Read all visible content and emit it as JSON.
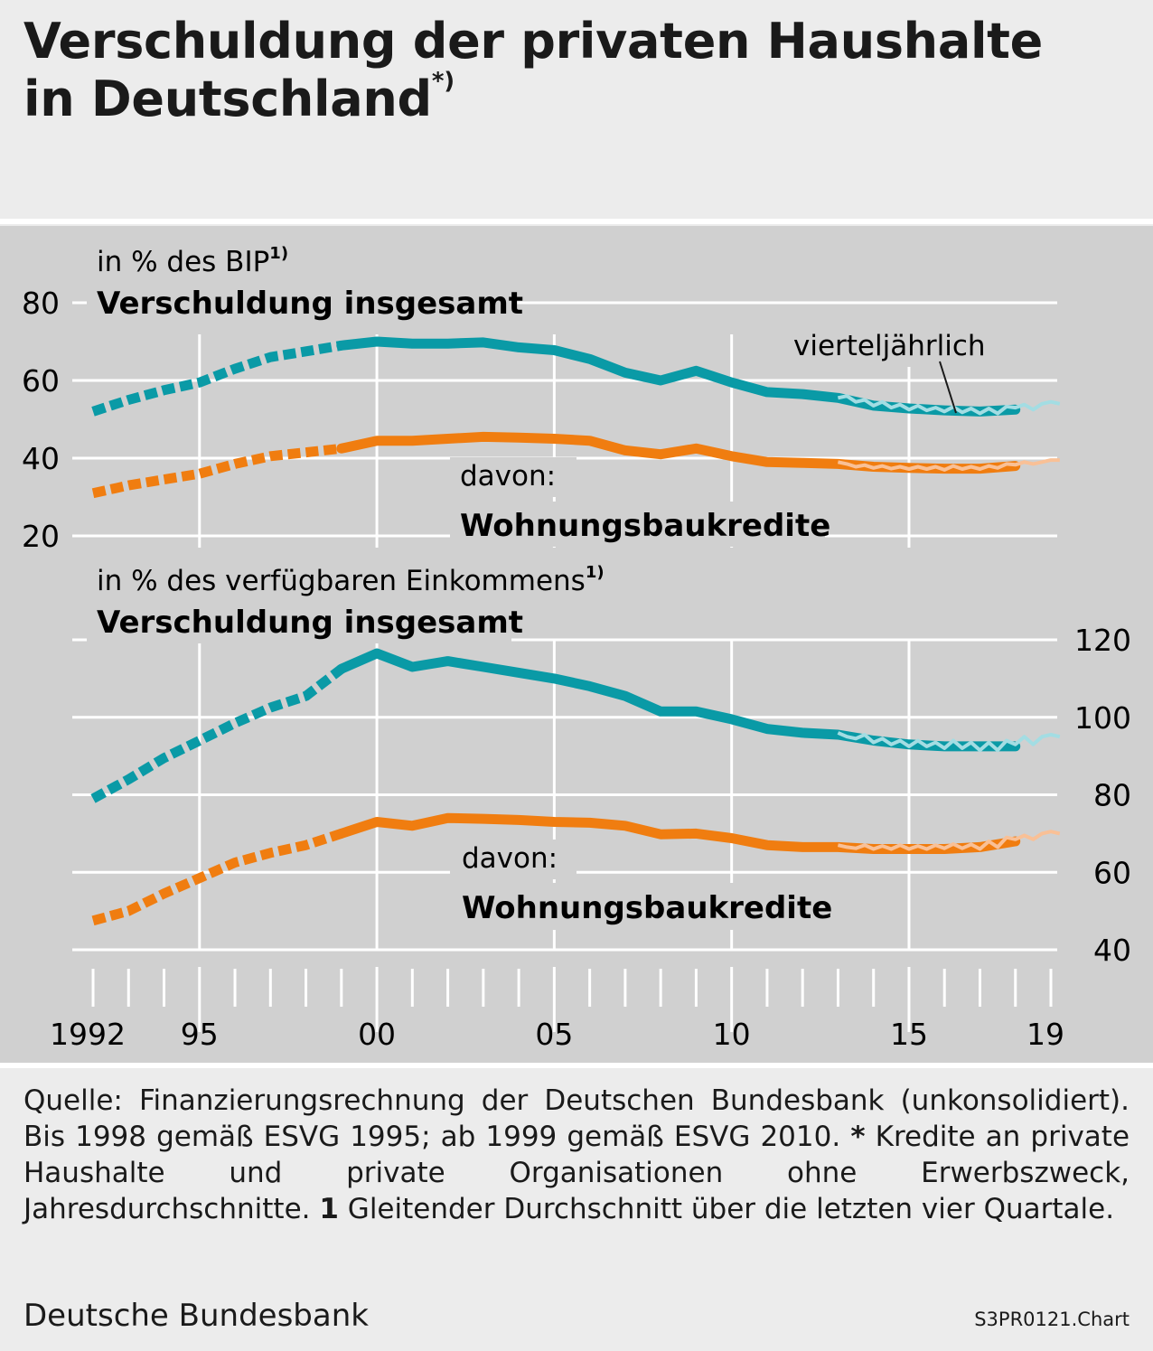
{
  "header": {
    "title_line1": "Verschuldung der privaten Haushalte",
    "title_line2": "in Deutschland",
    "title_marker": "*)"
  },
  "chart_data": [
    {
      "type": "line",
      "subtitle": "in % des BIP",
      "subtitle_marker": "1)",
      "title": "Verschuldung insgesamt",
      "sub_label": "davon:",
      "sub_title": "Wohnungsbaukredite",
      "annotation": "vierteljährlich",
      "yaxis_side": "left",
      "ylim": [
        20,
        80
      ],
      "yticks": [
        "20",
        "40",
        "60",
        "80"
      ],
      "x": [
        1992,
        1993,
        1994,
        1995,
        1996,
        1997,
        1998,
        1999,
        2000,
        2001,
        2002,
        2003,
        2004,
        2005,
        2006,
        2007,
        2008,
        2009,
        2010,
        2011,
        2012,
        2013,
        2014,
        2015,
        2016,
        2017,
        2018
      ],
      "dashed_until": 1999,
      "colors": {
        "total": "#0a9aa6",
        "housing": "#f07d10",
        "total_quarterly": "#a3dde3",
        "housing_quarterly": "#f9c096"
      },
      "series": [
        {
          "name": "Verschuldung insgesamt",
          "values": [
            52,
            55,
            57.5,
            59.5,
            63,
            66,
            67.5,
            69,
            70,
            69.5,
            69.5,
            69.8,
            68.5,
            67.8,
            65.5,
            62,
            60,
            62.5,
            59.5,
            57,
            56.5,
            55.5,
            53.5,
            52.8,
            52.3,
            52,
            52.5
          ]
        },
        {
          "name": "Wohnungsbaukredite",
          "values": [
            31,
            33,
            34.5,
            36,
            38.5,
            40.5,
            41.5,
            42.5,
            44.5,
            44.5,
            45,
            45.5,
            45.3,
            45,
            44.5,
            42,
            41,
            42.5,
            40.5,
            39,
            38.8,
            38.5,
            37.8,
            37.5,
            37.3,
            37.3,
            38
          ]
        },
        {
          "name": "vierteljährlich",
          "x": [
            2013,
            2013.25,
            2013.5,
            2013.75,
            2014,
            2014.25,
            2014.5,
            2014.75,
            2015,
            2015.25,
            2015.5,
            2015.75,
            2016,
            2016.25,
            2016.5,
            2016.75,
            2017,
            2017.25,
            2017.5,
            2017.75,
            2018,
            2018.25,
            2018.5,
            2018.75,
            2019,
            2019.25
          ],
          "values": [
            55.5,
            56,
            54.5,
            55,
            53.5,
            54.5,
            53,
            53.8,
            52.5,
            53.5,
            52.3,
            53,
            52,
            53.2,
            51.8,
            52.8,
            51.5,
            52.8,
            51.5,
            53.3,
            53,
            53.8,
            52.5,
            54,
            54.5,
            54
          ]
        },
        {
          "name": "Wohnungsbaukredite vierteljährlich",
          "x": [
            2013,
            2013.25,
            2013.5,
            2013.75,
            2014,
            2014.25,
            2014.5,
            2014.75,
            2015,
            2015.25,
            2015.5,
            2015.75,
            2016,
            2016.25,
            2016.5,
            2016.75,
            2017,
            2017.25,
            2017.5,
            2017.75,
            2018,
            2018.25,
            2018.5,
            2018.75,
            2019,
            2019.25
          ],
          "values": [
            39,
            38.5,
            37.8,
            38.2,
            37.5,
            38,
            37.3,
            37.8,
            37.2,
            37.8,
            37.2,
            37.8,
            37,
            38,
            37.2,
            37.8,
            37.2,
            38,
            37.5,
            38.5,
            38.3,
            39,
            38.5,
            39,
            39.5,
            39.5
          ]
        }
      ]
    },
    {
      "type": "line",
      "subtitle": "in % des verfügbaren Einkommens",
      "subtitle_marker": "1)",
      "title": "Verschuldung insgesamt",
      "sub_label": "davon:",
      "sub_title": "Wohnungsbaukredite",
      "yaxis_side": "right",
      "ylim": [
        40,
        120
      ],
      "yticks": [
        "40",
        "60",
        "80",
        "100",
        "120"
      ],
      "x": [
        1992,
        1993,
        1994,
        1995,
        1996,
        1997,
        1998,
        1999,
        2000,
        2001,
        2002,
        2003,
        2004,
        2005,
        2006,
        2007,
        2008,
        2009,
        2010,
        2011,
        2012,
        2013,
        2014,
        2015,
        2016,
        2017,
        2018
      ],
      "dashed_until": 1999,
      "series": [
        {
          "name": "Verschuldung insgesamt",
          "values": [
            79,
            84,
            89.5,
            94,
            98.5,
            102.5,
            105.5,
            112.5,
            116.5,
            113,
            114.5,
            113,
            111.5,
            110,
            108,
            105.5,
            101.5,
            101.5,
            99.5,
            97,
            96,
            95.5,
            94,
            93,
            92.5,
            92.5,
            92.5
          ]
        },
        {
          "name": "Wohnungsbaukredite",
          "values": [
            47.5,
            50,
            54.5,
            58.5,
            62.5,
            65,
            67,
            70,
            73,
            72,
            74,
            73.8,
            73.5,
            73,
            72.8,
            72,
            69.8,
            70,
            68.8,
            67,
            66.5,
            66.5,
            66,
            66,
            66,
            66.5,
            68
          ]
        },
        {
          "name": "vierteljährlich",
          "x": [
            2013,
            2013.25,
            2013.5,
            2013.75,
            2014,
            2014.25,
            2014.5,
            2014.75,
            2015,
            2015.25,
            2015.5,
            2015.75,
            2016,
            2016.25,
            2016.5,
            2016.75,
            2017,
            2017.25,
            2017.5,
            2017.75,
            2018,
            2018.25,
            2018.5,
            2018.75,
            2019,
            2019.25
          ],
          "values": [
            96,
            95,
            94.5,
            95.5,
            93.5,
            94.5,
            93,
            94,
            92.5,
            94,
            92.5,
            93.5,
            92,
            94,
            92,
            93.5,
            91.5,
            93.5,
            91.5,
            94,
            93,
            95,
            93,
            95,
            95.5,
            95
          ]
        },
        {
          "name": "Wohnungsbaukredite vierteljährlich",
          "x": [
            2013,
            2013.25,
            2013.5,
            2013.75,
            2014,
            2014.25,
            2014.5,
            2014.75,
            2015,
            2015.25,
            2015.5,
            2015.75,
            2016,
            2016.25,
            2016.5,
            2016.75,
            2017,
            2017.25,
            2017.5,
            2017.75,
            2018,
            2018.25,
            2018.5,
            2018.75,
            2019,
            2019.25
          ],
          "values": [
            67,
            66.5,
            66.2,
            67,
            66,
            66.8,
            66,
            67,
            66,
            66.8,
            66,
            67,
            66.2,
            67.3,
            66.2,
            67.2,
            66,
            68,
            66.5,
            69,
            68.5,
            69.5,
            68.5,
            70,
            70.5,
            70
          ]
        }
      ]
    }
  ],
  "xaxis": {
    "tick_labels": [
      {
        "year": 1992,
        "label": "1992"
      },
      {
        "year": 1995,
        "label": "95"
      },
      {
        "year": 2000,
        "label": "00"
      },
      {
        "year": 2005,
        "label": "05"
      },
      {
        "year": 2010,
        "label": "10"
      },
      {
        "year": 2015,
        "label": "15"
      },
      {
        "year": 2019,
        "label": "19"
      }
    ],
    "range": [
      1992,
      2019
    ]
  },
  "footer": {
    "source_text": "Quelle: Finanzierungsrechnung der Deutschen Bundesbank (unkonsolidiert). Bis 1998 gemäß ESVG 1995; ab 1999 gemäß ESVG 2010.",
    "star_marker": "*",
    "star_text": "Kredite an private Haushalte und private Organisationen ohne Erwerbszweck, Jahresdurchschnitte.",
    "note_marker": "1",
    "note_text": "Gleitender Durchschnitt über die letzten vier Quartale.",
    "publisher": "Deutsche Bundesbank",
    "chart_id": "S3PR0121.Chart"
  }
}
